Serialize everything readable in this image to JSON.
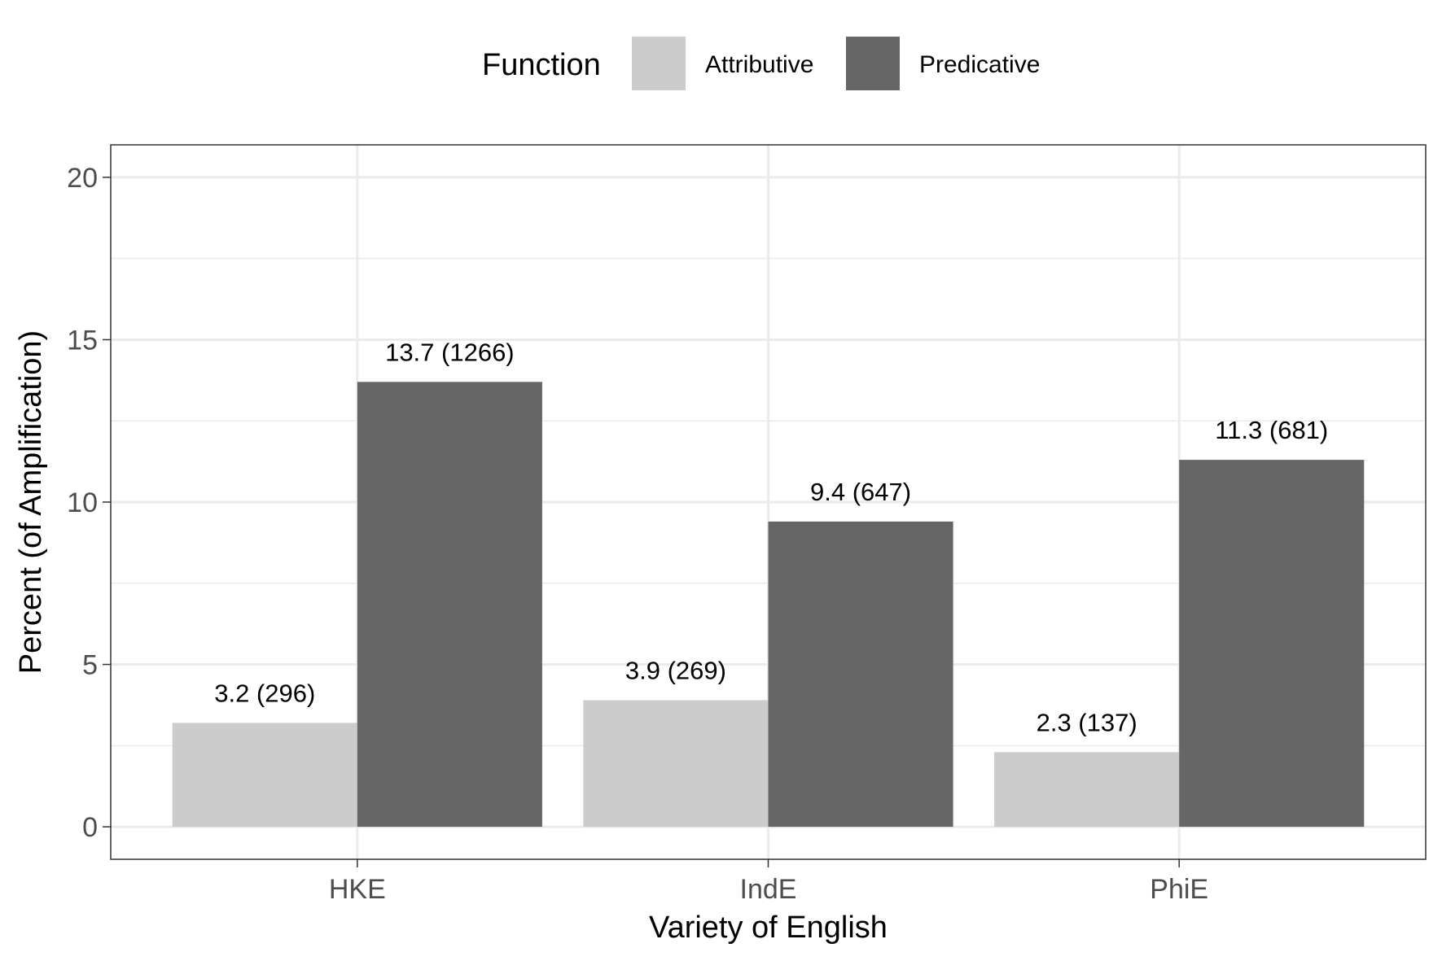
{
  "chart_data": {
    "type": "bar",
    "categories": [
      "HKE",
      "IndE",
      "PhiE"
    ],
    "series": [
      {
        "name": "Attributive",
        "color": "#cccccc",
        "values": [
          3.2,
          3.9,
          2.3
        ],
        "labels": [
          "3.2 (296)",
          "3.9 (269)",
          "2.3 (137)"
        ]
      },
      {
        "name": "Predicative",
        "color": "#666666",
        "values": [
          13.7,
          9.4,
          11.3
        ],
        "labels": [
          "13.7 (1266)",
          "9.4 (647)",
          "11.3 (681)"
        ]
      }
    ],
    "title": "",
    "xlabel": "Variety of English",
    "ylabel": "Percent (of Amplification)",
    "ylim": [
      -1,
      21
    ],
    "yticks": [
      0,
      5,
      10,
      15,
      20
    ],
    "grid": true,
    "legend": {
      "title": "Function",
      "placement": "top"
    }
  }
}
